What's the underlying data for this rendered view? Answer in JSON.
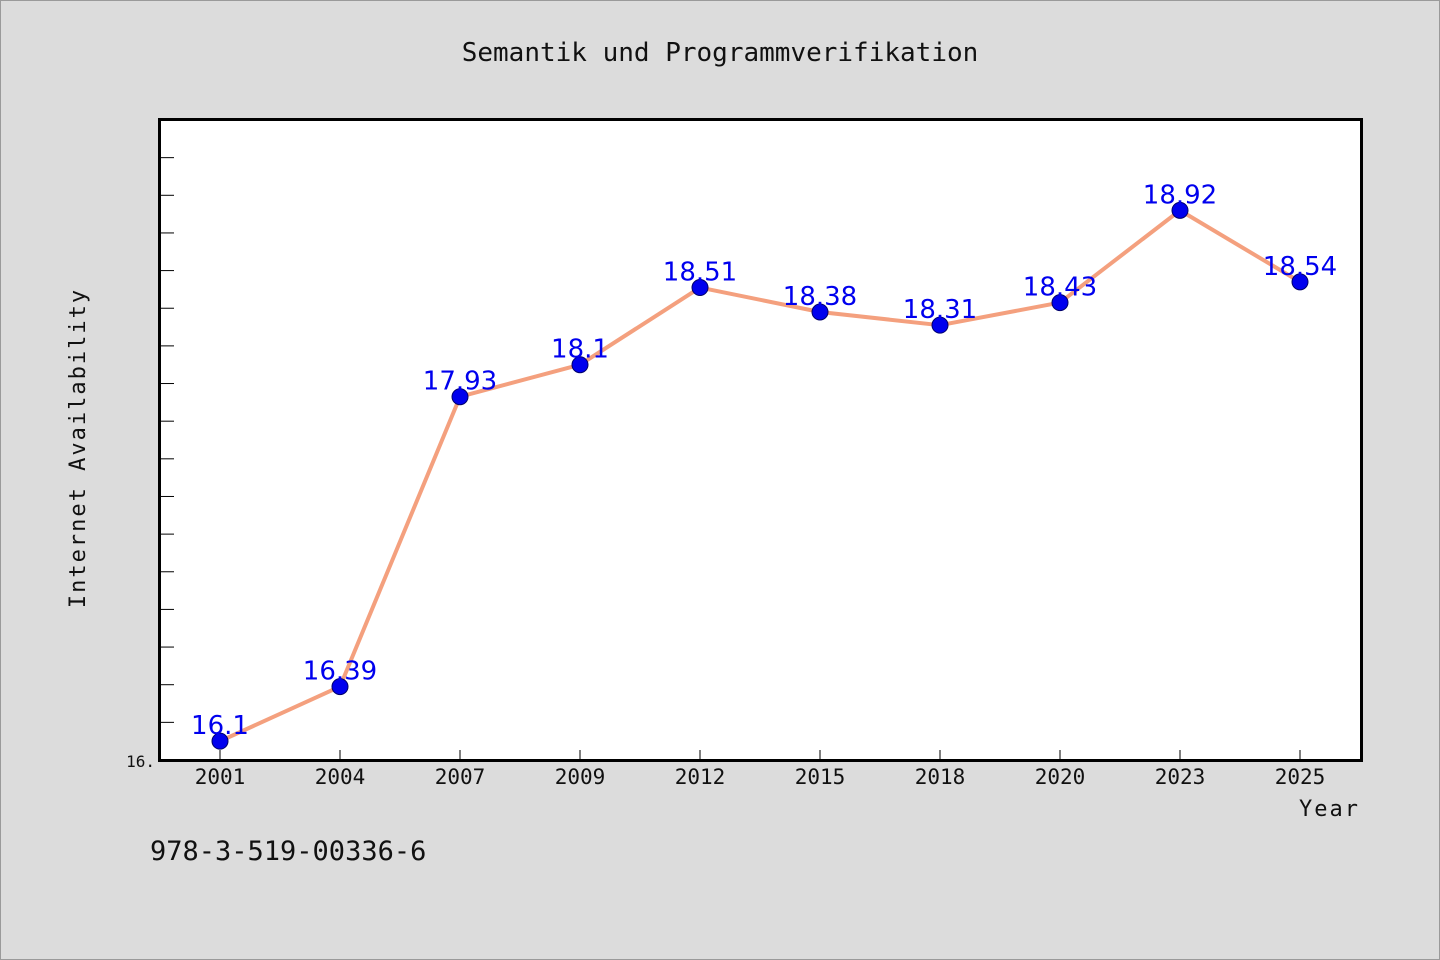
{
  "chart_data": {
    "type": "line",
    "title": "Semantik und Programmverifikation",
    "xlabel": "Year",
    "ylabel": "Internet Availability",
    "categories": [
      "2001",
      "2004",
      "2007",
      "2009",
      "2012",
      "2015",
      "2018",
      "2020",
      "2023",
      "2025"
    ],
    "series": [
      {
        "values": [
          16.1,
          16.39,
          17.93,
          18.1,
          18.51,
          18.38,
          18.31,
          18.43,
          18.92,
          18.54
        ],
        "labels": [
          "16.1",
          "16.39",
          "17.93",
          "18.1",
          "18.51",
          "18.38",
          "18.31",
          "18.43",
          "18.92",
          "18.54"
        ],
        "line_color": "#f4a07e",
        "marker_color": "#0000ee",
        "label_color": "#0000ee"
      }
    ],
    "ylim": [
      16.0,
      19.4
    ],
    "y_tick_label": "16.",
    "grid": false,
    "legend": "none"
  },
  "footer": {
    "isbn": "978-3-519-00336-6"
  }
}
